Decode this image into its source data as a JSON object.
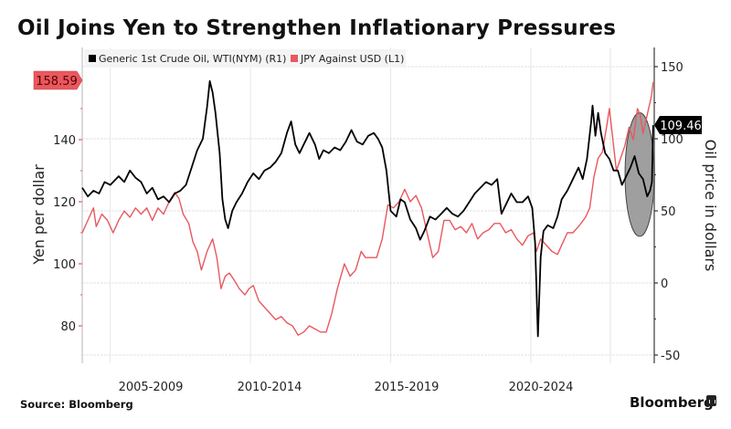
{
  "title": "Oil Joins Yen to Strengthen Inflationary Pressures",
  "source": "Source: Bloomberg",
  "brand": "Bloomberg",
  "brand_icon": "bloomberg-chart-icon",
  "colors": {
    "oil": "#000000",
    "jpy": "#e8585f",
    "jpy_label_bg": "#e8585f",
    "oil_label_bg": "#000000",
    "highlight_ellipse": "#9a9a9a",
    "grid": "#dddddd",
    "axis": "#888888"
  },
  "chart_data": {
    "type": "line",
    "title": "Oil Joins Yen to Strengthen Inflationary Pressures",
    "xlabel": "",
    "x_categories": [
      "2005-2009",
      "2010-2014",
      "2015-2019",
      "2020-2024"
    ],
    "x_range": [
      2004.0,
      2024.4
    ],
    "grid": true,
    "legend_placement": "top-left",
    "left_axis": {
      "label": "Yen per dollar",
      "ticks": [
        80,
        100,
        120,
        140
      ],
      "range": [
        73,
        162
      ],
      "last_value_label": "158.59"
    },
    "right_axis": {
      "label": "Oil price in dollars",
      "ticks": [
        -50,
        0,
        50,
        100,
        150
      ],
      "range": [
        -52,
        155
      ],
      "last_value_label": "109.46"
    },
    "series": [
      {
        "name": "Generic 1st Crude Oil, WTI(NYM) (R1)",
        "axis": "right",
        "color": "#000000",
        "points": [
          [
            2004.0,
            66
          ],
          [
            2004.2,
            60
          ],
          [
            2004.4,
            64
          ],
          [
            2004.6,
            62
          ],
          [
            2004.8,
            70
          ],
          [
            2005.0,
            68
          ],
          [
            2005.3,
            74
          ],
          [
            2005.5,
            70
          ],
          [
            2005.7,
            78
          ],
          [
            2005.9,
            73
          ],
          [
            2006.1,
            70
          ],
          [
            2006.3,
            62
          ],
          [
            2006.5,
            66
          ],
          [
            2006.7,
            58
          ],
          [
            2006.9,
            60
          ],
          [
            2007.1,
            56
          ],
          [
            2007.3,
            62
          ],
          [
            2007.5,
            64
          ],
          [
            2007.7,
            68
          ],
          [
            2007.9,
            80
          ],
          [
            2008.1,
            92
          ],
          [
            2008.3,
            100
          ],
          [
            2008.45,
            122
          ],
          [
            2008.55,
            140
          ],
          [
            2008.65,
            132
          ],
          [
            2008.75,
            118
          ],
          [
            2008.9,
            90
          ],
          [
            2009.0,
            58
          ],
          [
            2009.1,
            44
          ],
          [
            2009.2,
            38
          ],
          [
            2009.35,
            50
          ],
          [
            2009.5,
            56
          ],
          [
            2009.7,
            62
          ],
          [
            2009.9,
            70
          ],
          [
            2010.1,
            76
          ],
          [
            2010.3,
            72
          ],
          [
            2010.5,
            78
          ],
          [
            2010.7,
            80
          ],
          [
            2010.9,
            84
          ],
          [
            2011.1,
            90
          ],
          [
            2011.3,
            104
          ],
          [
            2011.45,
            112
          ],
          [
            2011.6,
            96
          ],
          [
            2011.75,
            90
          ],
          [
            2011.9,
            96
          ],
          [
            2012.1,
            104
          ],
          [
            2012.3,
            96
          ],
          [
            2012.45,
            86
          ],
          [
            2012.6,
            92
          ],
          [
            2012.8,
            90
          ],
          [
            2013.0,
            94
          ],
          [
            2013.2,
            92
          ],
          [
            2013.4,
            98
          ],
          [
            2013.6,
            106
          ],
          [
            2013.8,
            98
          ],
          [
            2014.0,
            96
          ],
          [
            2014.2,
            102
          ],
          [
            2014.4,
            104
          ],
          [
            2014.55,
            100
          ],
          [
            2014.7,
            94
          ],
          [
            2014.85,
            78
          ],
          [
            2015.0,
            50
          ],
          [
            2015.2,
            46
          ],
          [
            2015.35,
            58
          ],
          [
            2015.5,
            56
          ],
          [
            2015.7,
            44
          ],
          [
            2015.9,
            38
          ],
          [
            2016.05,
            30
          ],
          [
            2016.2,
            36
          ],
          [
            2016.4,
            46
          ],
          [
            2016.6,
            44
          ],
          [
            2016.8,
            48
          ],
          [
            2017.0,
            52
          ],
          [
            2017.2,
            48
          ],
          [
            2017.4,
            46
          ],
          [
            2017.6,
            50
          ],
          [
            2017.8,
            56
          ],
          [
            2018.0,
            62
          ],
          [
            2018.2,
            66
          ],
          [
            2018.4,
            70
          ],
          [
            2018.6,
            68
          ],
          [
            2018.8,
            72
          ],
          [
            2018.95,
            48
          ],
          [
            2019.1,
            54
          ],
          [
            2019.3,
            62
          ],
          [
            2019.5,
            56
          ],
          [
            2019.7,
            56
          ],
          [
            2019.9,
            60
          ],
          [
            2020.05,
            52
          ],
          [
            2020.15,
            28
          ],
          [
            2020.25,
            -37
          ],
          [
            2020.35,
            18
          ],
          [
            2020.45,
            36
          ],
          [
            2020.6,
            40
          ],
          [
            2020.8,
            38
          ],
          [
            2020.95,
            46
          ],
          [
            2021.1,
            58
          ],
          [
            2021.3,
            64
          ],
          [
            2021.5,
            72
          ],
          [
            2021.7,
            80
          ],
          [
            2021.85,
            72
          ],
          [
            2022.0,
            86
          ],
          [
            2022.15,
            112
          ],
          [
            2022.2,
            123
          ],
          [
            2022.3,
            102
          ],
          [
            2022.4,
            118
          ],
          [
            2022.5,
            104
          ],
          [
            2022.65,
            90
          ],
          [
            2022.8,
            86
          ],
          [
            2022.95,
            78
          ],
          [
            2023.1,
            78
          ],
          [
            2023.25,
            68
          ],
          [
            2023.4,
            74
          ],
          [
            2023.55,
            80
          ],
          [
            2023.7,
            88
          ],
          [
            2023.85,
            76
          ],
          [
            2024.0,
            72
          ],
          [
            2024.15,
            60
          ],
          [
            2024.25,
            64
          ],
          [
            2024.32,
            70
          ],
          [
            2024.36,
            109.46
          ]
        ]
      },
      {
        "name": "JPY Against USD (L1)",
        "axis": "left",
        "color": "#e8585f",
        "points": [
          [
            2004.0,
            110
          ],
          [
            2004.2,
            114
          ],
          [
            2004.4,
            118
          ],
          [
            2004.5,
            112
          ],
          [
            2004.7,
            116
          ],
          [
            2004.9,
            114
          ],
          [
            2005.1,
            110
          ],
          [
            2005.3,
            114
          ],
          [
            2005.5,
            117
          ],
          [
            2005.7,
            115
          ],
          [
            2005.9,
            118
          ],
          [
            2006.1,
            116
          ],
          [
            2006.3,
            118
          ],
          [
            2006.5,
            114
          ],
          [
            2006.7,
            118
          ],
          [
            2006.9,
            116
          ],
          [
            2007.1,
            120
          ],
          [
            2007.3,
            123
          ],
          [
            2007.45,
            121
          ],
          [
            2007.6,
            116
          ],
          [
            2007.8,
            113
          ],
          [
            2007.95,
            107
          ],
          [
            2008.1,
            104
          ],
          [
            2008.25,
            98
          ],
          [
            2008.45,
            104
          ],
          [
            2008.65,
            108
          ],
          [
            2008.8,
            102
          ],
          [
            2008.95,
            92
          ],
          [
            2009.1,
            96
          ],
          [
            2009.25,
            97
          ],
          [
            2009.4,
            95
          ],
          [
            2009.6,
            92
          ],
          [
            2009.8,
            90
          ],
          [
            2009.95,
            92
          ],
          [
            2010.1,
            93
          ],
          [
            2010.3,
            88
          ],
          [
            2010.5,
            86
          ],
          [
            2010.7,
            84
          ],
          [
            2010.9,
            82
          ],
          [
            2011.1,
            83
          ],
          [
            2011.3,
            81
          ],
          [
            2011.5,
            80
          ],
          [
            2011.7,
            77
          ],
          [
            2011.9,
            78
          ],
          [
            2012.1,
            80
          ],
          [
            2012.3,
            79
          ],
          [
            2012.5,
            78
          ],
          [
            2012.7,
            78
          ],
          [
            2012.9,
            84
          ],
          [
            2013.1,
            92
          ],
          [
            2013.35,
            100
          ],
          [
            2013.55,
            96
          ],
          [
            2013.75,
            98
          ],
          [
            2013.95,
            104
          ],
          [
            2014.1,
            102
          ],
          [
            2014.3,
            102
          ],
          [
            2014.5,
            102
          ],
          [
            2014.7,
            108
          ],
          [
            2014.9,
            119
          ],
          [
            2015.1,
            118
          ],
          [
            2015.3,
            120
          ],
          [
            2015.5,
            124
          ],
          [
            2015.7,
            120
          ],
          [
            2015.9,
            122
          ],
          [
            2016.1,
            118
          ],
          [
            2016.3,
            110
          ],
          [
            2016.5,
            102
          ],
          [
            2016.7,
            104
          ],
          [
            2016.9,
            114
          ],
          [
            2017.1,
            114
          ],
          [
            2017.3,
            111
          ],
          [
            2017.5,
            112
          ],
          [
            2017.7,
            110
          ],
          [
            2017.9,
            113
          ],
          [
            2018.1,
            108
          ],
          [
            2018.3,
            110
          ],
          [
            2018.5,
            111
          ],
          [
            2018.7,
            113
          ],
          [
            2018.9,
            113
          ],
          [
            2019.1,
            110
          ],
          [
            2019.3,
            111
          ],
          [
            2019.5,
            108
          ],
          [
            2019.7,
            106
          ],
          [
            2019.9,
            109
          ],
          [
            2020.1,
            110
          ],
          [
            2020.2,
            104
          ],
          [
            2020.35,
            108
          ],
          [
            2020.55,
            106
          ],
          [
            2020.75,
            104
          ],
          [
            2020.95,
            103
          ],
          [
            2021.1,
            106
          ],
          [
            2021.3,
            110
          ],
          [
            2021.5,
            110
          ],
          [
            2021.7,
            112
          ],
          [
            2021.95,
            115
          ],
          [
            2022.1,
            118
          ],
          [
            2022.25,
            128
          ],
          [
            2022.4,
            134
          ],
          [
            2022.55,
            136
          ],
          [
            2022.7,
            144
          ],
          [
            2022.8,
            150
          ],
          [
            2022.95,
            138
          ],
          [
            2023.05,
            130
          ],
          [
            2023.2,
            134
          ],
          [
            2023.35,
            138
          ],
          [
            2023.5,
            144
          ],
          [
            2023.65,
            140
          ],
          [
            2023.8,
            150
          ],
          [
            2023.9,
            148
          ],
          [
            2024.0,
            142
          ],
          [
            2024.15,
            148
          ],
          [
            2024.3,
            154
          ],
          [
            2024.36,
            158.59
          ]
        ]
      }
    ],
    "annotations": [
      {
        "type": "ellipse",
        "description": "highlight recent oil spike",
        "x_range": [
          2023.75,
          2024.4
        ],
        "right_axis_range": [
          50,
          118
        ]
      }
    ]
  }
}
